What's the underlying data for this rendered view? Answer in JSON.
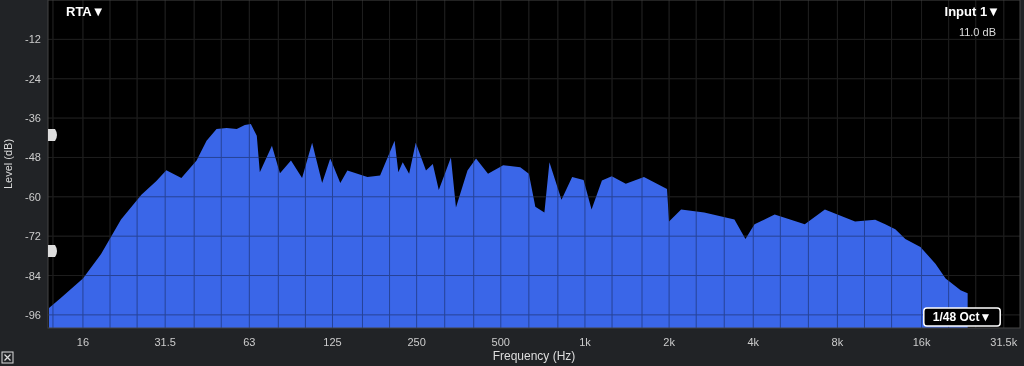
{
  "chart_data": {
    "type": "area",
    "xlabel": "Frequency (Hz)",
    "ylabel": "Level (dB)",
    "log": "x",
    "grid": true,
    "xlim": [
      12,
      36000
    ],
    "ylim": [
      -100,
      0
    ],
    "xticks": [
      {
        "value": 12.5,
        "label": null
      },
      16,
      {
        "value": 20,
        "label": null
      },
      {
        "value": 25,
        "label": null
      },
      31.5,
      {
        "value": 40,
        "label": null
      },
      {
        "value": 50,
        "label": null
      },
      63,
      {
        "value": 80,
        "label": null
      },
      {
        "value": 100,
        "label": null
      },
      125,
      {
        "value": 160,
        "label": null
      },
      {
        "value": 200,
        "label": null
      },
      250,
      {
        "value": 315,
        "label": null
      },
      {
        "value": 400,
        "label": null
      },
      500,
      {
        "value": 630,
        "label": null
      },
      {
        "value": 800,
        "label": null
      },
      {
        "value": 1000,
        "label": "1k"
      },
      {
        "value": 1250,
        "label": null
      },
      {
        "value": 1600,
        "label": null
      },
      {
        "value": 2000,
        "label": "2k"
      },
      {
        "value": 2500,
        "label": null
      },
      {
        "value": 3150,
        "label": null
      },
      {
        "value": 4000,
        "label": "4k"
      },
      {
        "value": 5000,
        "label": null
      },
      {
        "value": 6300,
        "label": null
      },
      {
        "value": 8000,
        "label": "8k"
      },
      {
        "value": 10000,
        "label": null
      },
      {
        "value": 12500,
        "label": null
      },
      {
        "value": 16000,
        "label": "16k"
      },
      {
        "value": 20000,
        "label": null
      },
      {
        "value": 25000,
        "label": null
      },
      {
        "value": 31500,
        "label": "31.5k"
      }
    ],
    "yticks": [
      -12,
      -24,
      -36,
      -48,
      -60,
      -72,
      -84,
      -96
    ],
    "annotations": [
      "RTA▼",
      "Input 1▼",
      "11.0 dB",
      "1/48 Oct▼"
    ],
    "series": [
      {
        "color": "#3a66e8",
        "x": [
          12.1,
          13.3,
          16,
          18.6,
          21.9,
          25.9,
          29.3,
          31.8,
          36,
          40.8,
          44.3,
          48.1,
          52.3,
          56.8,
          60.7,
          63.8,
          67,
          68.7,
          75.9,
          81.1,
          88.8,
          97.3,
          105.7,
          114.8,
          122.7,
          133.3,
          141.3,
          166.7,
          185,
          208.5,
          215,
          222.9,
          235,
          248.1,
          270,
          285.6,
          300,
          331.5,
          345.6,
          380,
          407.7,
          450,
          509.9,
          586.9,
          630,
          664.5,
          716,
          746.4,
          824.3,
          900,
          988.8,
          1056,
          1150,
          1247,
          1400,
          1626,
          1966,
          1999,
          2208,
          2672,
          3426,
          3751,
          4042,
          4771,
          6115,
          7216,
          9254,
          10921,
          11862,
          12890,
          14000,
          15851,
          17940,
          19500,
          21170,
          22070,
          23390
        ],
        "values": [
          -93.9,
          -90.9,
          -84.9,
          -77.4,
          -66.9,
          -59.4,
          -55.2,
          -51.9,
          -54.3,
          -48.9,
          -42.9,
          -39.3,
          -39,
          -39.3,
          -38.1,
          -37.8,
          -41.4,
          -52.5,
          -44.4,
          -52.8,
          -48.9,
          -54.3,
          -43.5,
          -55.8,
          -48.3,
          -55.8,
          -52,
          -54,
          -53.5,
          -42.9,
          -52.5,
          -49.5,
          -53,
          -43.5,
          -52,
          -50,
          -57.9,
          -48,
          -63.3,
          -52,
          -48.3,
          -53,
          -50.4,
          -51,
          -53,
          -63,
          -64.8,
          -49.5,
          -60.9,
          -54,
          -54.9,
          -63.9,
          -55,
          -53.7,
          -56,
          -54,
          -57.6,
          -67.5,
          -63.9,
          -64.8,
          -66.9,
          -72.9,
          -68.4,
          -65.4,
          -68.4,
          -63.9,
          -67.5,
          -67,
          -68.4,
          -69.9,
          -72.9,
          -75.3,
          -80.4,
          -84.9,
          -87.3,
          -88.5,
          -89.4
        ]
      }
    ]
  }
}
